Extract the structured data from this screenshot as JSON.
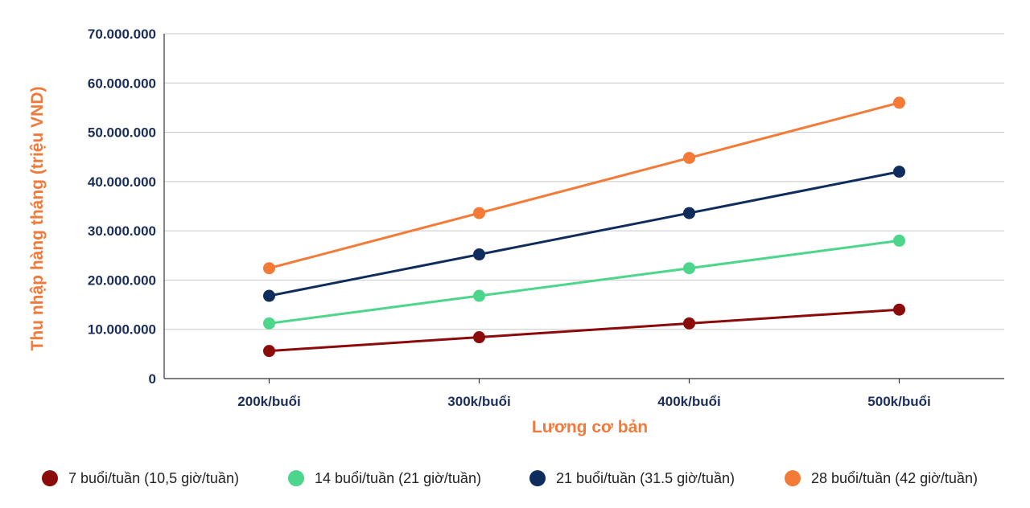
{
  "chart_data": {
    "type": "line",
    "title": "",
    "xlabel": "Lương cơ bản",
    "ylabel": "Thu nhập hàng tháng (triệu VND)",
    "categories": [
      "200k/buổi",
      "300k/buổi",
      "400k/buổi",
      "500k/buổi"
    ],
    "ylim": [
      0,
      70000000
    ],
    "yticks": [
      0,
      10000000,
      20000000,
      30000000,
      40000000,
      50000000,
      60000000,
      70000000
    ],
    "ytick_labels": [
      "0",
      "10.000.000",
      "20.000.000",
      "30.000.000",
      "40.000.000",
      "50.000.000",
      "60.000.000",
      "70.000.000"
    ],
    "grid": true,
    "legend_position": "bottom",
    "series": [
      {
        "name": "7 buổi/tuần (10,5 giờ/tuần)",
        "color": "#8b0a0a",
        "values": [
          5600000,
          8400000,
          11200000,
          14000000
        ]
      },
      {
        "name": "14 buổi/tuần (21 giờ/tuần)",
        "color": "#4cd68b",
        "values": [
          11200000,
          16800000,
          22400000,
          28000000
        ]
      },
      {
        "name": "21 buổi/tuần (31.5 giờ/tuần)",
        "color": "#0f2d5c",
        "values": [
          16800000,
          25200000,
          33600000,
          42000000
        ]
      },
      {
        "name": "28 buổi/tuần (42 giờ/tuần)",
        "color": "#f47a38",
        "values": [
          22400000,
          33600000,
          44800000,
          56000000
        ]
      }
    ]
  }
}
